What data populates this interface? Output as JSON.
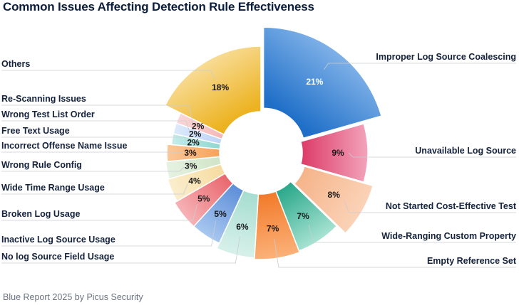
{
  "title": "Common Issues Affecting Detection Rule Effectiveness",
  "footer": "Blue Report 2025 by Picus Security",
  "chart_data": {
    "type": "pie",
    "variant": "donut",
    "title": "Common Issues Affecting Detection Rule Effectiveness",
    "slices": [
      {
        "label": "Improper Log Source Coalescing",
        "value": 21,
        "display": "21%",
        "color": "#1f6fc8",
        "color2": "#7fb1e8",
        "exploded": true,
        "labelSide": "right"
      },
      {
        "label": "Unavailable Log Source",
        "value": 9,
        "display": "9%",
        "color": "#dc3d69",
        "color2": "#f3a3bb",
        "exploded": false,
        "labelSide": "right"
      },
      {
        "label": "Not Started Cost-Effective Test",
        "value": 8,
        "display": "8%",
        "color": "#f5b48a",
        "color2": "#fbd3b8",
        "exploded": true,
        "labelSide": "right"
      },
      {
        "label": "Wide-Ranging Custom Property",
        "value": 7,
        "display": "7%",
        "color": "#2aa88a",
        "color2": "#a8e3d3",
        "exploded": false,
        "labelSide": "right"
      },
      {
        "label": "Empty Reference Set",
        "value": 7,
        "display": "7%",
        "color": "#f27a2a",
        "color2": "#fbb27a",
        "exploded": false,
        "labelSide": "right"
      },
      {
        "label": "No log Source Field Usage",
        "value": 6,
        "display": "6%",
        "color": "#a6ddd0",
        "color2": "#d8f1ea",
        "exploded": false,
        "labelSide": "left"
      },
      {
        "label": "Inactive Log Source Usage",
        "value": 5,
        "display": "5%",
        "color": "#5d8ed8",
        "color2": "#a9c8f0",
        "exploded": false,
        "labelSide": "left"
      },
      {
        "label": "Broken Log Usage",
        "value": 5,
        "display": "5%",
        "color": "#e9676e",
        "color2": "#f6b3b6",
        "exploded": false,
        "labelSide": "left"
      },
      {
        "label": "Wide Time Range Usage",
        "value": 4,
        "display": "4%",
        "color": "#f6dba0",
        "color2": "#fbeecd",
        "exploded": false,
        "labelSide": "left"
      },
      {
        "label": "Wrong Rule Config",
        "value": 3,
        "display": "3%",
        "color": "#cfe5c7",
        "color2": "#e6f2e1",
        "exploded": false,
        "labelSide": "left"
      },
      {
        "label": "Incorrect Offense Name Issue",
        "value": 3,
        "display": "3%",
        "color": "#f6a25a",
        "color2": "#fbc89a",
        "exploded": false,
        "labelSide": "left"
      },
      {
        "label": "Free Text Usage",
        "value": 2,
        "display": "2%",
        "color": "#8fd7d2",
        "color2": "#c4ece9",
        "exploded": false,
        "labelSide": "left"
      },
      {
        "label": "Wrong Test List Order",
        "value": 2,
        "display": "2%",
        "color": "#bcd4f7",
        "color2": "#dde9fb",
        "exploded": false,
        "labelSide": "left"
      },
      {
        "label": "Re-Scanning Issues",
        "value": 2,
        "display": "2%",
        "color": "#f4b8b8",
        "color2": "#fad7d7",
        "exploded": false,
        "labelSide": "left"
      },
      {
        "label": "Others",
        "value": 18,
        "display": "18%",
        "color": "#ecb21f",
        "color2": "#f8dc96",
        "exploded": false,
        "labelSide": "left"
      }
    ]
  }
}
